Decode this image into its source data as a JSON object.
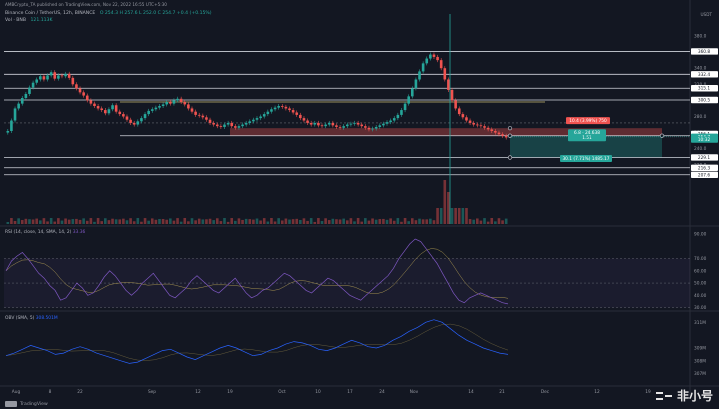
{
  "header": {
    "credit": "AMBCrypto_TA published on TradingView.com, Nov 22, 2022 16:55 UTC+5:30",
    "symbol": "Binance Coin / TetherUS, 12h, BINANCE",
    "ohlc": "O 254.3  H 257.6  L 252.0  C 254.7  +0.4 (+0.15%)",
    "volume_label": "Vol · BNB",
    "volume_value": "121.113K",
    "currency": "USDT"
  },
  "price_axis": {
    "ticks": [
      "380.0",
      "360.0",
      "340.0",
      "320.0",
      "300.0",
      "280.0",
      "260.0",
      "240.0",
      "220.0"
    ],
    "tags": [
      {
        "label": "360.8",
        "color": "#ffffff",
        "text": "#131722"
      },
      {
        "label": "332.4",
        "color": "#ffffff",
        "text": "#131722"
      },
      {
        "label": "315.1",
        "color": "#ffffff",
        "text": "#131722"
      },
      {
        "label": "300.5",
        "color": "#ffffff",
        "text": "#131722"
      },
      {
        "label": "256.1",
        "color": "#ffffff",
        "text": "#131722"
      },
      {
        "label": "254.7",
        "color": "#26a69a",
        "text": "#ffffff"
      },
      {
        "label": "10:32",
        "color": "#26a69a",
        "text": "#ffffff"
      },
      {
        "label": "229.1",
        "color": "#ffffff",
        "text": "#131722"
      },
      {
        "label": "216.3",
        "color": "#ffffff",
        "text": "#131722"
      },
      {
        "label": "207.6",
        "color": "#ffffff",
        "text": "#131722"
      }
    ]
  },
  "position_labels": {
    "stop": "10.4 (3.99%) 750",
    "rr_line1": "6.8 · 24.638",
    "rr_line2": "1.51",
    "target": "30.1 (7.71%) 1485.17"
  },
  "rsi": {
    "label": "RSI (14, close, 14, SMA, 14, 2)",
    "value": "33.36",
    "ticks": [
      "90.00",
      "70.00",
      "60.00",
      "50.00",
      "40.00",
      "30.00"
    ]
  },
  "obv": {
    "label": "OBV (SMA, 5)",
    "value": "308.501M",
    "ticks": [
      "311M",
      "309M",
      "308M",
      "307M"
    ]
  },
  "time_axis": {
    "labels": [
      "Aug",
      "8",
      "22",
      "Sep",
      "12",
      "19",
      "Oct",
      "10",
      "17",
      "24",
      "Nov",
      "14",
      "21",
      "Dec",
      "12",
      "19"
    ]
  },
  "footer": {
    "brand": "TradingView",
    "watermark": "非小号"
  },
  "colors": {
    "up": "#26a69a",
    "down": "#ef5350",
    "rsi": "#7e57c2",
    "obv": "#2962ff"
  }
}
